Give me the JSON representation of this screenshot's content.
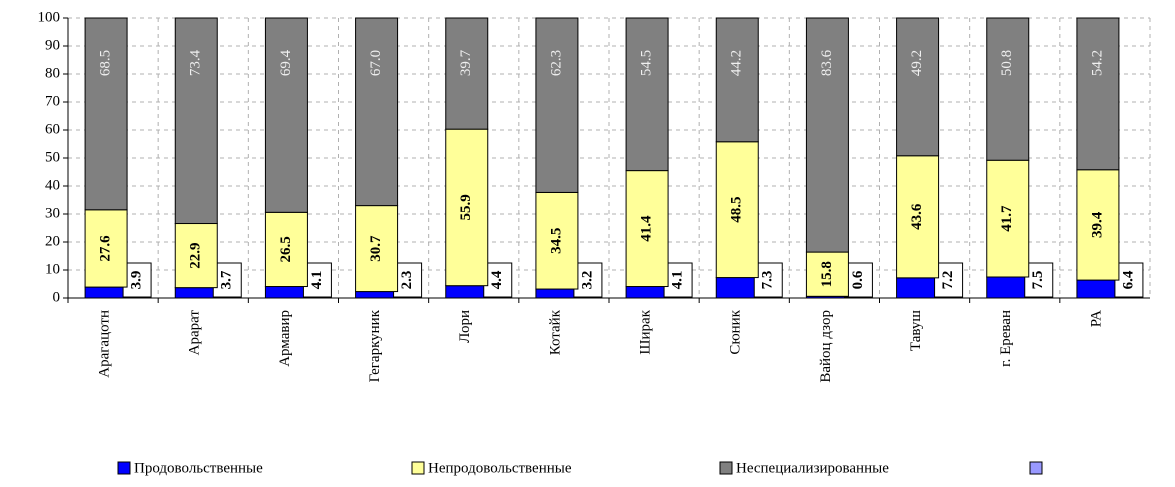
{
  "chart_data": {
    "type": "stacked_bar",
    "categories": [
      "Арагацотн",
      "Арарат",
      "Армавир",
      "Гегаркуник",
      "Лори",
      "Котайк",
      "Ширак",
      "Сюник",
      "Вайоц дзор",
      "Тавуш",
      "г. Ереван",
      "РА"
    ],
    "series": [
      {
        "name": "Продовольственные",
        "color": "#0000ff",
        "values": [
          3.9,
          3.7,
          4.1,
          2.3,
          4.4,
          3.2,
          4.1,
          7.3,
          0.6,
          7.2,
          7.5,
          6.4
        ],
        "value_labels": [
          "3.9",
          "3.7",
          "4.1",
          "2.3",
          "4.4",
          "3.2",
          "4.1",
          "7.3",
          "0.6",
          "7.2",
          "7.5",
          "6.4"
        ]
      },
      {
        "name": "Непродовольственные",
        "color": "#ffff99",
        "values": [
          27.6,
          22.9,
          26.5,
          30.7,
          55.9,
          34.5,
          41.4,
          48.5,
          15.8,
          43.6,
          41.7,
          39.4
        ],
        "value_labels": [
          "27.6",
          "22.9",
          "26.5",
          "30.7",
          "55.9",
          "34.5",
          "41.4",
          "48.5",
          "15.8",
          "43.6",
          "41.7",
          "39.4"
        ]
      },
      {
        "name": "Неспециализированные",
        "color": "#808080",
        "values": [
          68.5,
          73.4,
          69.4,
          67.0,
          39.7,
          62.3,
          54.5,
          44.2,
          83.6,
          49.2,
          50.8,
          54.2
        ],
        "value_labels": [
          "68.5",
          "73.4",
          "69.4",
          "67.0",
          "39.7",
          "62.3",
          "54.5",
          "44.2",
          "83.6",
          "49.2",
          "50.8",
          "54.2"
        ]
      }
    ],
    "ylim": [
      0,
      100
    ],
    "yticks": [
      0,
      10,
      20,
      30,
      40,
      50,
      60,
      70,
      80,
      90,
      100
    ],
    "grid": true
  }
}
